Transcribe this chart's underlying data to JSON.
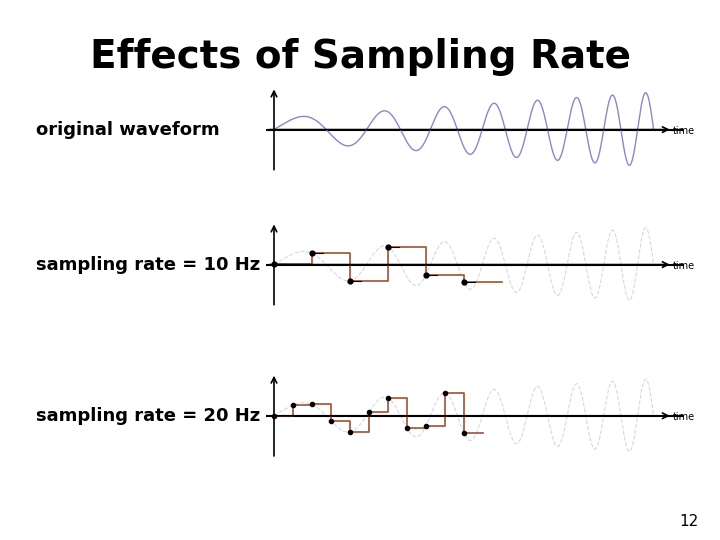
{
  "title": "Effects of Sampling Rate",
  "title_fontsize": 28,
  "title_font": "DejaVu Sans",
  "label1": "original waveform",
  "label2": "sampling rate = 10 Hz",
  "label3": "sampling rate = 20 Hz",
  "label_fontsize": 13,
  "page_number": "12",
  "bg_color": "#ffffff",
  "wave_color": "#8888cc",
  "step_color": "#a05030",
  "axis_color": "#000000",
  "time_label": "time"
}
